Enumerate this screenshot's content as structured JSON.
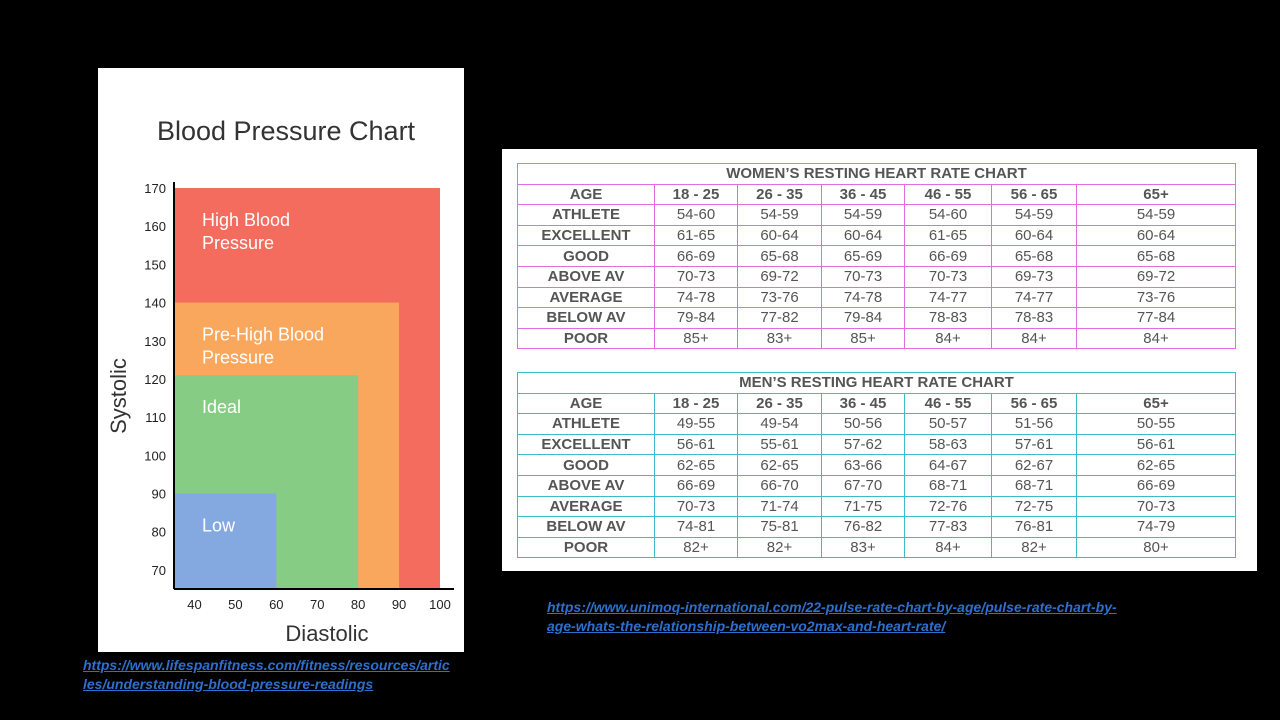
{
  "colors": {
    "high": "#f36c5e",
    "prehigh": "#f9a75d",
    "ideal": "#86cc84",
    "low": "#84a9e0",
    "women_border": "#e06ee0",
    "men_border": "#3bbcc8",
    "link": "#2e6fce"
  },
  "chart_data": {
    "type": "area",
    "title": "Blood Pressure Chart",
    "xlabel": "Diastolic",
    "ylabel": "Systolic",
    "xlim": [
      35,
      100
    ],
    "ylim": [
      65,
      170
    ],
    "x_ticks": [
      40,
      50,
      60,
      70,
      80,
      90,
      100
    ],
    "y_ticks": [
      70,
      80,
      90,
      100,
      110,
      120,
      130,
      140,
      150,
      160,
      170
    ],
    "regions": [
      {
        "name": "High Blood Pressure",
        "label_lines": [
          "High Blood",
          "Pressure"
        ],
        "diastolic_max": 100,
        "systolic_max": 170,
        "color": "#f36c5e"
      },
      {
        "name": "Pre-High Blood Pressure",
        "label_lines": [
          "Pre-High Blood",
          "Pressure"
        ],
        "diastolic_max": 90,
        "systolic_max": 140,
        "color": "#f9a75d"
      },
      {
        "name": "Ideal",
        "label_lines": [
          "Ideal"
        ],
        "diastolic_max": 80,
        "systolic_max": 121,
        "color": "#86cc84"
      },
      {
        "name": "Low",
        "label_lines": [
          "Low"
        ],
        "diastolic_max": 60,
        "systolic_max": 90,
        "color": "#84a9e0"
      }
    ]
  },
  "women_table": {
    "title": "WOMEN’S RESTING HEART RATE CHART",
    "headers": [
      "AGE",
      "18 - 25",
      "26 - 35",
      "36 - 45",
      "46 - 55",
      "56 - 65",
      "65+"
    ],
    "rows": [
      [
        "ATHLETE",
        "54-60",
        "54-59",
        "54-59",
        "54-60",
        "54-59",
        "54-59"
      ],
      [
        "EXCELLENT",
        "61-65",
        "60-64",
        "60-64",
        "61-65",
        "60-64",
        "60-64"
      ],
      [
        "GOOD",
        "66-69",
        "65-68",
        "65-69",
        "66-69",
        "65-68",
        "65-68"
      ],
      [
        "ABOVE AV",
        "70-73",
        "69-72",
        "70-73",
        "70-73",
        "69-73",
        "69-72"
      ],
      [
        "AVERAGE",
        "74-78",
        "73-76",
        "74-78",
        "74-77",
        "74-77",
        "73-76"
      ],
      [
        "BELOW AV",
        "79-84",
        "77-82",
        "79-84",
        "78-83",
        "78-83",
        "77-84"
      ],
      [
        "POOR",
        "85+",
        "83+",
        "85+",
        "84+",
        "84+",
        "84+"
      ]
    ]
  },
  "men_table": {
    "title": "MEN’S RESTING HEART RATE CHART",
    "headers": [
      "AGE",
      "18 - 25",
      "26 - 35",
      "36 - 45",
      "46 - 55",
      "56 - 65",
      "65+"
    ],
    "rows": [
      [
        "ATHLETE",
        "49-55",
        "49-54",
        "50-56",
        "50-57",
        "51-56",
        "50-55"
      ],
      [
        "EXCELLENT",
        "56-61",
        "55-61",
        "57-62",
        "58-63",
        "57-61",
        "56-61"
      ],
      [
        "GOOD",
        "62-65",
        "62-65",
        "63-66",
        "64-67",
        "62-67",
        "62-65"
      ],
      [
        "ABOVE AV",
        "66-69",
        "66-70",
        "67-70",
        "68-71",
        "68-71",
        "66-69"
      ],
      [
        "AVERAGE",
        "70-73",
        "71-74",
        "71-75",
        "72-76",
        "72-75",
        "70-73"
      ],
      [
        "BELOW AV",
        "74-81",
        "75-81",
        "76-82",
        "77-83",
        "76-81",
        "74-79"
      ],
      [
        "POOR",
        "82+",
        "82+",
        "83+",
        "84+",
        "82+",
        "80+"
      ]
    ]
  },
  "links": {
    "bp_line1": "https://www.lifespanfitness.com/fitness/resources/artic",
    "bp_line2": "les/understanding-blood-pressure-readings",
    "hr_line1": "https://www.unimoq-international.com/22-pulse-rate-chart-by-age/pulse-rate-chart-by-",
    "hr_line2": "age-whats-the-relationship-between-vo2max-and-heart-rate/"
  }
}
